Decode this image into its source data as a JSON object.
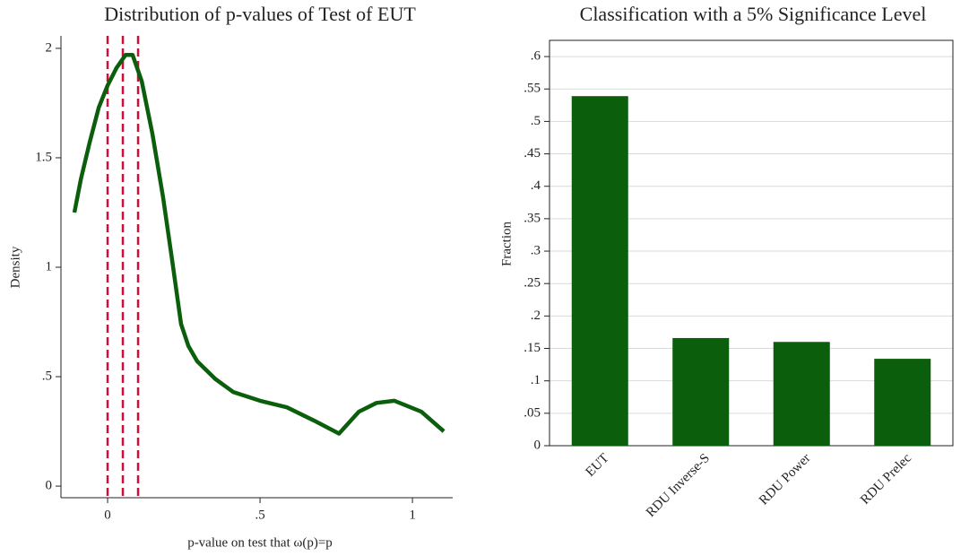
{
  "chart_data": [
    {
      "type": "line",
      "title": "Distribution of p-values of Test of EUT",
      "xlabel": "p-value on test that ω(p)=p",
      "ylabel": "Density",
      "x": [
        -0.109,
        -0.088,
        -0.059,
        -0.029,
        0,
        0.029,
        0.059,
        0.082,
        0.112,
        0.147,
        0.182,
        0.212,
        0.241,
        0.265,
        0.294,
        0.353,
        0.412,
        0.5,
        0.588,
        0.676,
        0.759,
        0.824,
        0.882,
        0.941,
        1.029,
        1.103
      ],
      "y": [
        1.25,
        1.4,
        1.57,
        1.73,
        1.83,
        1.91,
        1.97,
        1.97,
        1.85,
        1.61,
        1.32,
        1.03,
        0.74,
        0.64,
        0.57,
        0.49,
        0.43,
        0.39,
        0.36,
        0.3,
        0.24,
        0.34,
        0.38,
        0.39,
        0.34,
        0.25
      ],
      "color": "#0b5e0b",
      "vlines": [
        0,
        0.05,
        0.1
      ],
      "vline_color": "#c8103a",
      "xlim": [
        -0.153,
        1.132
      ],
      "ylim": [
        -0.053,
        2.057
      ],
      "xticks": [
        0,
        {
          "value": 0.5,
          "label": ".5"
        },
        1
      ],
      "yticks": [
        0,
        {
          "value": 0.5,
          "label": ".5"
        },
        1,
        1.5,
        2
      ]
    },
    {
      "type": "bar",
      "title": "Classification with a 5% Significance Level",
      "ylabel": "Fraction",
      "categories": [
        "EUT",
        "RDU Inverse-S",
        "RDU Power",
        "RDU Prelec"
      ],
      "values": [
        0.539,
        0.166,
        0.16,
        0.134
      ],
      "color": "#0b5e0b",
      "ylim": [
        0,
        0.625
      ],
      "grid": true,
      "yticks": [
        0,
        {
          "value": 0.05,
          "label": ".05"
        },
        {
          "value": 0.1,
          "label": ".1"
        },
        {
          "value": 0.15,
          "label": ".15"
        },
        {
          "value": 0.2,
          "label": ".2"
        },
        {
          "value": 0.25,
          "label": ".25"
        },
        {
          "value": 0.3,
          "label": ".3"
        },
        {
          "value": 0.35,
          "label": ".35"
        },
        {
          "value": 0.4,
          "label": ".4"
        },
        {
          "value": 0.45,
          "label": ".45"
        },
        {
          "value": 0.5,
          "label": ".5"
        },
        {
          "value": 0.55,
          "label": ".55"
        },
        {
          "value": 0.6,
          "label": ".6"
        }
      ]
    }
  ]
}
